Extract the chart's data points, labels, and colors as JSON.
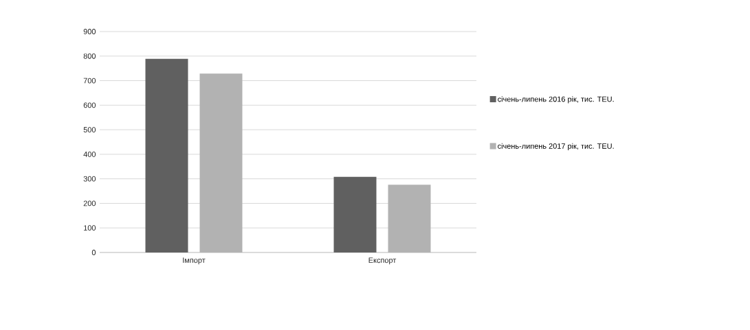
{
  "chart_data": {
    "type": "bar",
    "categories": [
      "Імпорт",
      "Експорт"
    ],
    "series": [
      {
        "name": "січень-липень 2016 рік, тис. TEU.",
        "color": "#606060",
        "values": [
          789,
          308
        ]
      },
      {
        "name": "січень-липень 2017 рік, тис. TEU.",
        "color": "#b2b2b2",
        "values": [
          729,
          276
        ]
      }
    ],
    "ylim": [
      0,
      900
    ],
    "yticks": [
      0,
      100,
      200,
      300,
      400,
      500,
      600,
      700,
      800,
      900
    ],
    "grid": "y",
    "legend": "right"
  }
}
